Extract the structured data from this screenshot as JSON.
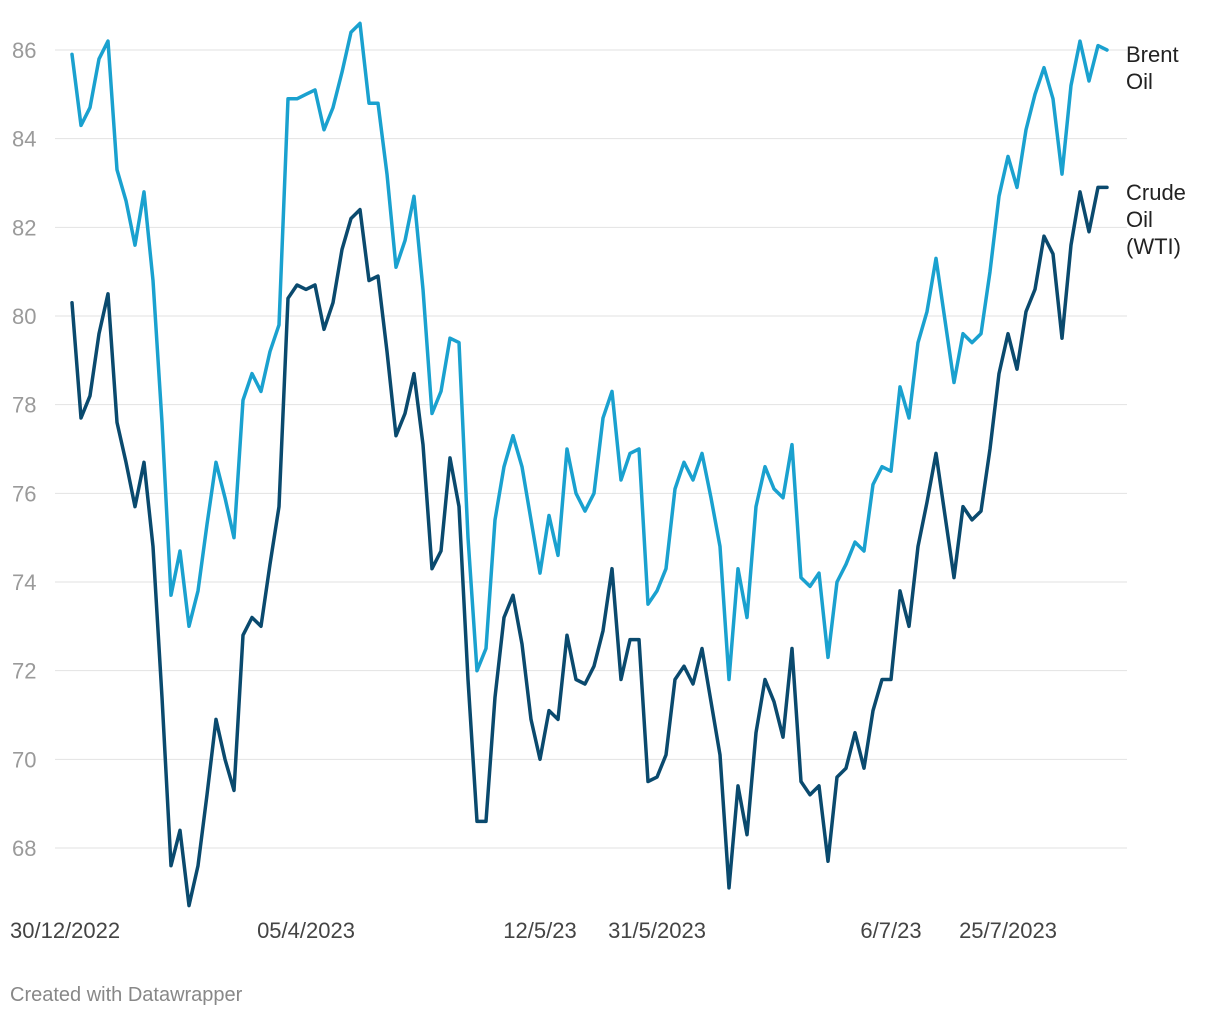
{
  "credit": "Created with Datawrapper",
  "chart_data": {
    "type": "line",
    "grid": true,
    "ylim": [
      67,
      87
    ],
    "y_ticks": [
      "86",
      "84",
      "82",
      "80",
      "78",
      "76",
      "74",
      "72",
      "70",
      "68"
    ],
    "x_tick_labels": [
      {
        "index": 0,
        "label": "30/12/2022"
      },
      {
        "index": 26,
        "label": "05/4/2023"
      },
      {
        "index": 52,
        "label": "12/5/23"
      },
      {
        "index": 65,
        "label": "31/5/2023"
      },
      {
        "index": 91,
        "label": "6/7/23"
      },
      {
        "index": 104,
        "label": "25/7/2023"
      }
    ],
    "series": [
      {
        "name": "Brent Oil",
        "legend_lines": [
          "Brent",
          "Oil"
        ],
        "color": "#1aa1cf",
        "values": [
          85.9,
          84.3,
          84.7,
          85.8,
          86.2,
          83.3,
          82.6,
          81.6,
          82.8,
          80.8,
          77.6,
          73.7,
          74.7,
          73.0,
          73.8,
          75.3,
          76.7,
          75.9,
          75.0,
          78.1,
          78.7,
          78.3,
          79.2,
          79.8,
          84.9,
          84.9,
          85.0,
          85.1,
          84.2,
          84.7,
          85.5,
          86.4,
          86.6,
          84.8,
          84.8,
          83.2,
          81.1,
          81.7,
          82.7,
          80.6,
          77.8,
          78.3,
          79.5,
          79.4,
          75.0,
          72.0,
          72.5,
          75.4,
          76.6,
          77.3,
          76.6,
          75.4,
          74.2,
          75.5,
          74.6,
          77.0,
          76.0,
          75.6,
          76.0,
          77.7,
          78.3,
          76.3,
          76.9,
          77.0,
          73.5,
          73.8,
          74.3,
          76.1,
          76.7,
          76.3,
          76.9,
          75.9,
          74.8,
          71.8,
          74.3,
          73.2,
          75.7,
          76.6,
          76.1,
          75.9,
          77.1,
          74.1,
          73.9,
          74.2,
          72.3,
          74.0,
          74.4,
          74.9,
          74.7,
          76.2,
          76.6,
          76.5,
          78.4,
          77.7,
          79.4,
          80.1,
          81.3,
          79.9,
          78.5,
          79.6,
          79.4,
          79.6,
          81.0,
          82.7,
          83.6,
          82.9,
          84.2,
          85.0,
          85.6,
          84.9,
          83.2,
          85.2,
          86.2,
          85.3,
          86.1,
          86.0
        ]
      },
      {
        "name": "Crude Oil (WTI)",
        "legend_lines": [
          "Crude",
          "Oil",
          "(WTI)"
        ],
        "color": "#0a4a6e",
        "values": [
          80.3,
          77.7,
          78.2,
          79.6,
          80.5,
          77.6,
          76.7,
          75.7,
          76.7,
          74.8,
          71.4,
          67.6,
          68.4,
          66.7,
          67.6,
          69.2,
          70.9,
          70.0,
          69.3,
          72.8,
          73.2,
          73.0,
          74.4,
          75.7,
          80.4,
          80.7,
          80.6,
          80.7,
          79.7,
          80.3,
          81.5,
          82.2,
          82.4,
          80.8,
          80.9,
          79.2,
          77.3,
          77.8,
          78.7,
          77.1,
          74.3,
          74.7,
          76.8,
          75.7,
          71.8,
          68.6,
          68.6,
          71.4,
          73.2,
          73.7,
          72.6,
          70.9,
          70.0,
          71.1,
          70.9,
          72.8,
          71.8,
          71.7,
          72.1,
          72.9,
          74.3,
          71.8,
          72.7,
          72.7,
          69.5,
          69.6,
          70.1,
          71.8,
          72.1,
          71.7,
          72.5,
          71.3,
          70.1,
          67.1,
          69.4,
          68.3,
          70.6,
          71.8,
          71.3,
          70.5,
          72.5,
          69.5,
          69.2,
          69.4,
          67.7,
          69.6,
          69.8,
          70.6,
          69.8,
          71.1,
          71.8,
          71.8,
          73.8,
          73.0,
          74.8,
          75.8,
          76.9,
          75.5,
          74.1,
          75.7,
          75.4,
          75.6,
          77.0,
          78.7,
          79.6,
          78.8,
          80.1,
          80.6,
          81.8,
          81.4,
          79.5,
          81.6,
          82.8,
          81.9,
          82.9,
          82.9
        ]
      }
    ]
  }
}
